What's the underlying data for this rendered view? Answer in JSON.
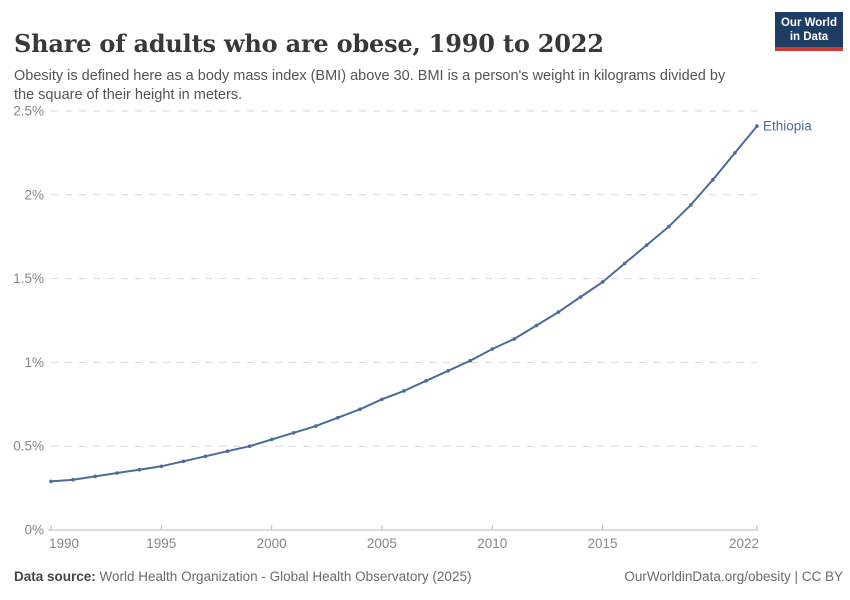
{
  "header": {
    "title": "Share of adults who are obese, 1990 to 2022",
    "subtitle": "Obesity is defined here as a body mass index (BMI) above 30. BMI is a person's weight in kilograms divided by\nthe square of their height in meters.",
    "logo": {
      "line1": "Our World",
      "line2": "in Data",
      "bg_color": "#1d3d63",
      "accent_color": "#cf3a33"
    }
  },
  "chart_data": {
    "type": "line",
    "title": "Share of adults who are obese, 1990 to 2022",
    "xlabel": "",
    "ylabel": "",
    "xlim": [
      1990,
      2022
    ],
    "ylim": [
      0,
      2.5
    ],
    "grid": "horizontal-dashed",
    "legend_position": "end-of-line-label",
    "x_ticks": [
      1990,
      1995,
      2000,
      2005,
      2010,
      2015,
      2022
    ],
    "y_ticks": [
      {
        "value": 0,
        "label": "0%"
      },
      {
        "value": 0.5,
        "label": "0.5%"
      },
      {
        "value": 1,
        "label": "1%"
      },
      {
        "value": 1.5,
        "label": "1.5%"
      },
      {
        "value": 2,
        "label": "2%"
      },
      {
        "value": 2.5,
        "label": "2.5%"
      }
    ],
    "end_label": "Ethiopia",
    "series": [
      {
        "name": "Ethiopia",
        "color": "#4c6a9c",
        "x": [
          1990,
          1991,
          1992,
          1993,
          1994,
          1995,
          1996,
          1997,
          1998,
          1999,
          2000,
          2001,
          2002,
          2003,
          2004,
          2005,
          2006,
          2007,
          2008,
          2009,
          2010,
          2011,
          2012,
          2013,
          2014,
          2015,
          2016,
          2017,
          2018,
          2019,
          2020,
          2021,
          2022
        ],
        "values": [
          0.29,
          0.3,
          0.32,
          0.34,
          0.36,
          0.38,
          0.41,
          0.44,
          0.47,
          0.5,
          0.54,
          0.58,
          0.62,
          0.67,
          0.72,
          0.78,
          0.83,
          0.89,
          0.95,
          1.01,
          1.08,
          1.14,
          1.22,
          1.3,
          1.39,
          1.48,
          1.59,
          1.7,
          1.81,
          1.94,
          2.09,
          2.25,
          2.41
        ]
      }
    ]
  },
  "footer": {
    "datasource_label": "Data source:",
    "datasource_text": " World Health Organization - Global Health Observatory (2025)",
    "rights": "OurWorldinData.org/obesity | CC BY"
  }
}
